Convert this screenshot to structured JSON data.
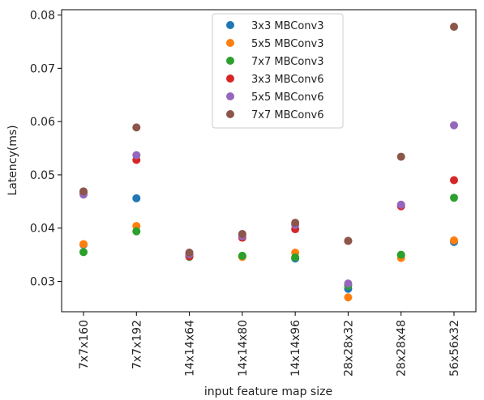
{
  "chart_data": {
    "type": "scatter",
    "title": "",
    "xlabel": "input feature map size",
    "ylabel": "Latency(ms)",
    "categories": [
      "7x7x160",
      "7x7x192",
      "14x14x64",
      "14x14x80",
      "14x14x96",
      "28x28x32",
      "28x28x48",
      "56x56x32"
    ],
    "ylim": [
      0.0243,
      0.081
    ],
    "yticks": [
      0.03,
      0.04,
      0.05,
      0.06,
      0.07,
      0.08
    ],
    "ytick_labels": [
      "0.03",
      "0.04",
      "0.05",
      "0.06",
      "0.07",
      "0.08"
    ],
    "grid": false,
    "legend_position": "top-center",
    "series": [
      {
        "name": "3x3 MBConv3",
        "color": "#1f77b4",
        "values": [
          0.0369,
          0.0456,
          0.0349,
          0.0347,
          0.0343,
          0.0286,
          0.0349,
          0.0374
        ]
      },
      {
        "name": "5x5 MBConv3",
        "color": "#ff7f0e",
        "values": [
          0.037,
          0.0404,
          0.035,
          0.0346,
          0.0354,
          0.027,
          0.0344,
          0.0377
        ]
      },
      {
        "name": "7x7 MBConv3",
        "color": "#2ca02c",
        "values": [
          0.0355,
          0.0394,
          0.0346,
          0.0348,
          0.0345,
          0.0292,
          0.035,
          0.0457
        ]
      },
      {
        "name": "3x3 MBConv6",
        "color": "#d62728",
        "values": [
          0.0467,
          0.0528,
          0.0347,
          0.0382,
          0.0398,
          0.0376,
          0.0441,
          0.049
        ]
      },
      {
        "name": "5x5 MBConv6",
        "color": "#9467bd",
        "values": [
          0.0463,
          0.0537,
          0.0351,
          0.0385,
          0.0406,
          0.0296,
          0.0444,
          0.0593
        ]
      },
      {
        "name": "7x7 MBConv6",
        "color": "#8c564b",
        "values": [
          0.0469,
          0.0589,
          0.0354,
          0.0389,
          0.041,
          0.0376,
          0.0534,
          0.0778
        ]
      }
    ]
  }
}
